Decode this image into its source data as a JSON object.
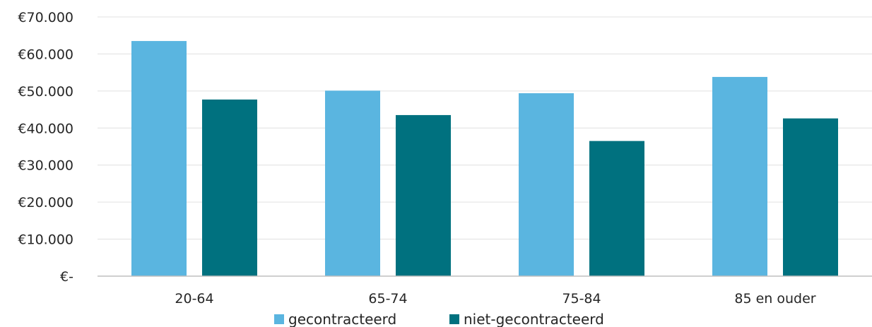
{
  "chart_data": {
    "type": "bar",
    "categories": [
      "20-64",
      "65-74",
      "75-84",
      "85 en ouder"
    ],
    "series": [
      {
        "name": "gecontracteerd",
        "color": "#5AB5E0",
        "values": [
          63500,
          50100,
          49400,
          53800
        ]
      },
      {
        "name": "niet-gecontracteerd",
        "color": "#00717F",
        "values": [
          47700,
          43500,
          36500,
          42600
        ]
      }
    ],
    "y_ticks": [
      {
        "value": 0,
        "label": "€-"
      },
      {
        "value": 10000,
        "label": "€10.000"
      },
      {
        "value": 20000,
        "label": "€20.000"
      },
      {
        "value": 30000,
        "label": "€30.000"
      },
      {
        "value": 40000,
        "label": "€40.000"
      },
      {
        "value": 50000,
        "label": "€50.000"
      },
      {
        "value": 60000,
        "label": "€60.000"
      },
      {
        "value": 70000,
        "label": "€70.000"
      }
    ],
    "ylim": [
      0,
      70000
    ],
    "grid": true,
    "legend_position": "bottom",
    "gridline_color": "#E0E0E0",
    "axis_color": "#BFBFBF"
  }
}
